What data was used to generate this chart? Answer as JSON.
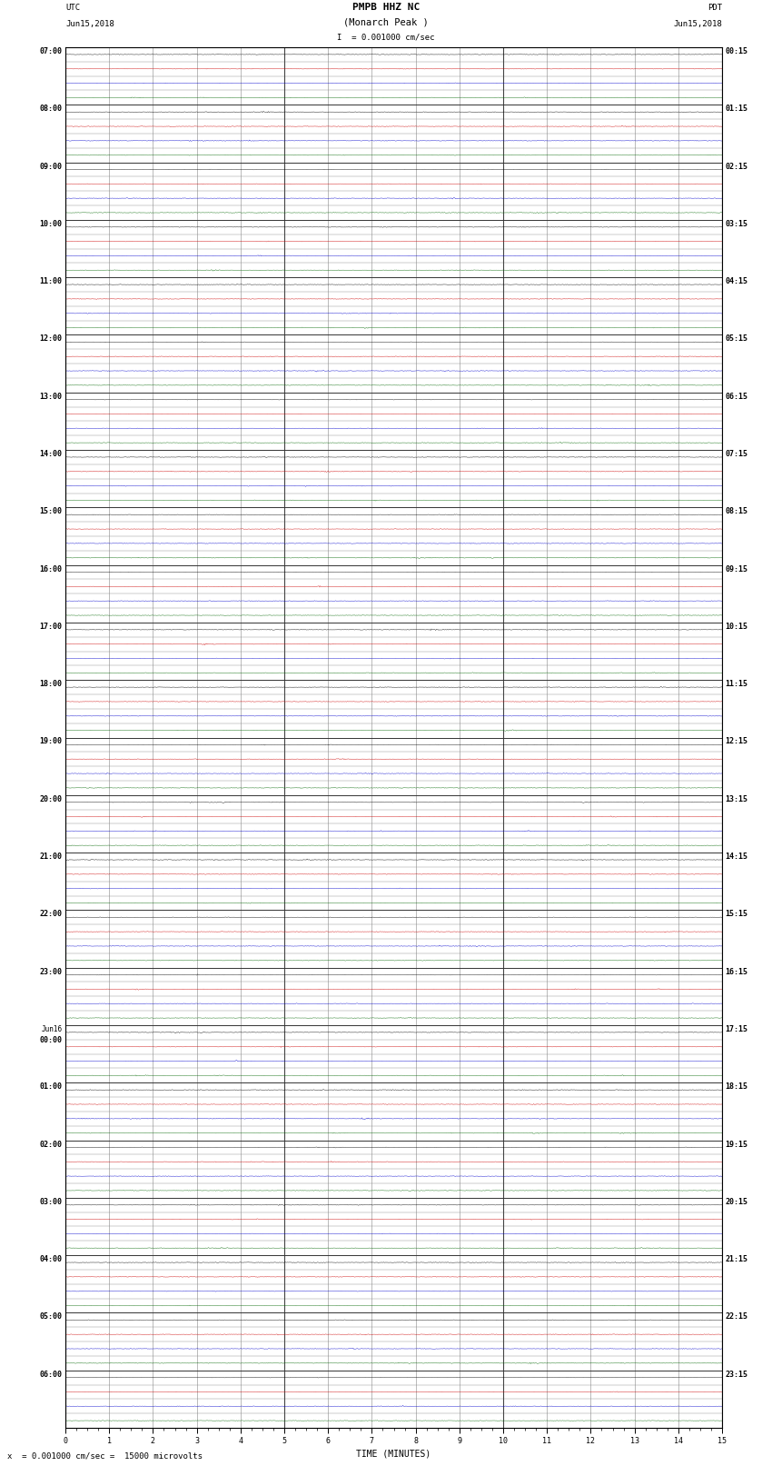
{
  "title_line1": "PMPB HHZ NC",
  "title_line2": "(Monarch Peak )",
  "scale_label": "= 0.001000 cm/sec",
  "bottom_label": "= 0.001000 cm/sec =  15000 microvolts",
  "utc_label": "UTC",
  "utc_date": "Jun15,2018",
  "pdt_label": "PDT",
  "pdt_date": "Jun15,2018",
  "xlabel": "TIME (MINUTES)",
  "bg_color": "#ffffff",
  "grid_color": "#aaaaaa",
  "grid_major_color": "#555555",
  "trace_colors": [
    "#000000",
    "#cc0000",
    "#0000cc",
    "#006600"
  ],
  "num_time_groups": 24,
  "traces_per_group": 4,
  "minutes_per_row": 15,
  "xlim": [
    0,
    15
  ],
  "xticks": [
    0,
    1,
    2,
    3,
    4,
    5,
    6,
    7,
    8,
    9,
    10,
    11,
    12,
    13,
    14,
    15
  ],
  "left_times": [
    "07:00",
    "08:00",
    "09:00",
    "10:00",
    "11:00",
    "12:00",
    "13:00",
    "14:00",
    "15:00",
    "16:00",
    "17:00",
    "18:00",
    "19:00",
    "20:00",
    "21:00",
    "22:00",
    "23:00",
    "Jun16\n00:00",
    "01:00",
    "02:00",
    "03:00",
    "04:00",
    "05:00",
    "06:00"
  ],
  "right_times": [
    "00:15",
    "01:15",
    "02:15",
    "03:15",
    "04:15",
    "05:15",
    "06:15",
    "07:15",
    "08:15",
    "09:15",
    "10:15",
    "11:15",
    "12:15",
    "13:15",
    "14:15",
    "15:15",
    "16:15",
    "17:15",
    "18:15",
    "19:15",
    "20:15",
    "21:15",
    "22:15",
    "23:15"
  ],
  "noise_amplitude": 0.008,
  "title_fontsize": 8,
  "label_fontsize": 6.5,
  "tick_fontsize": 6
}
